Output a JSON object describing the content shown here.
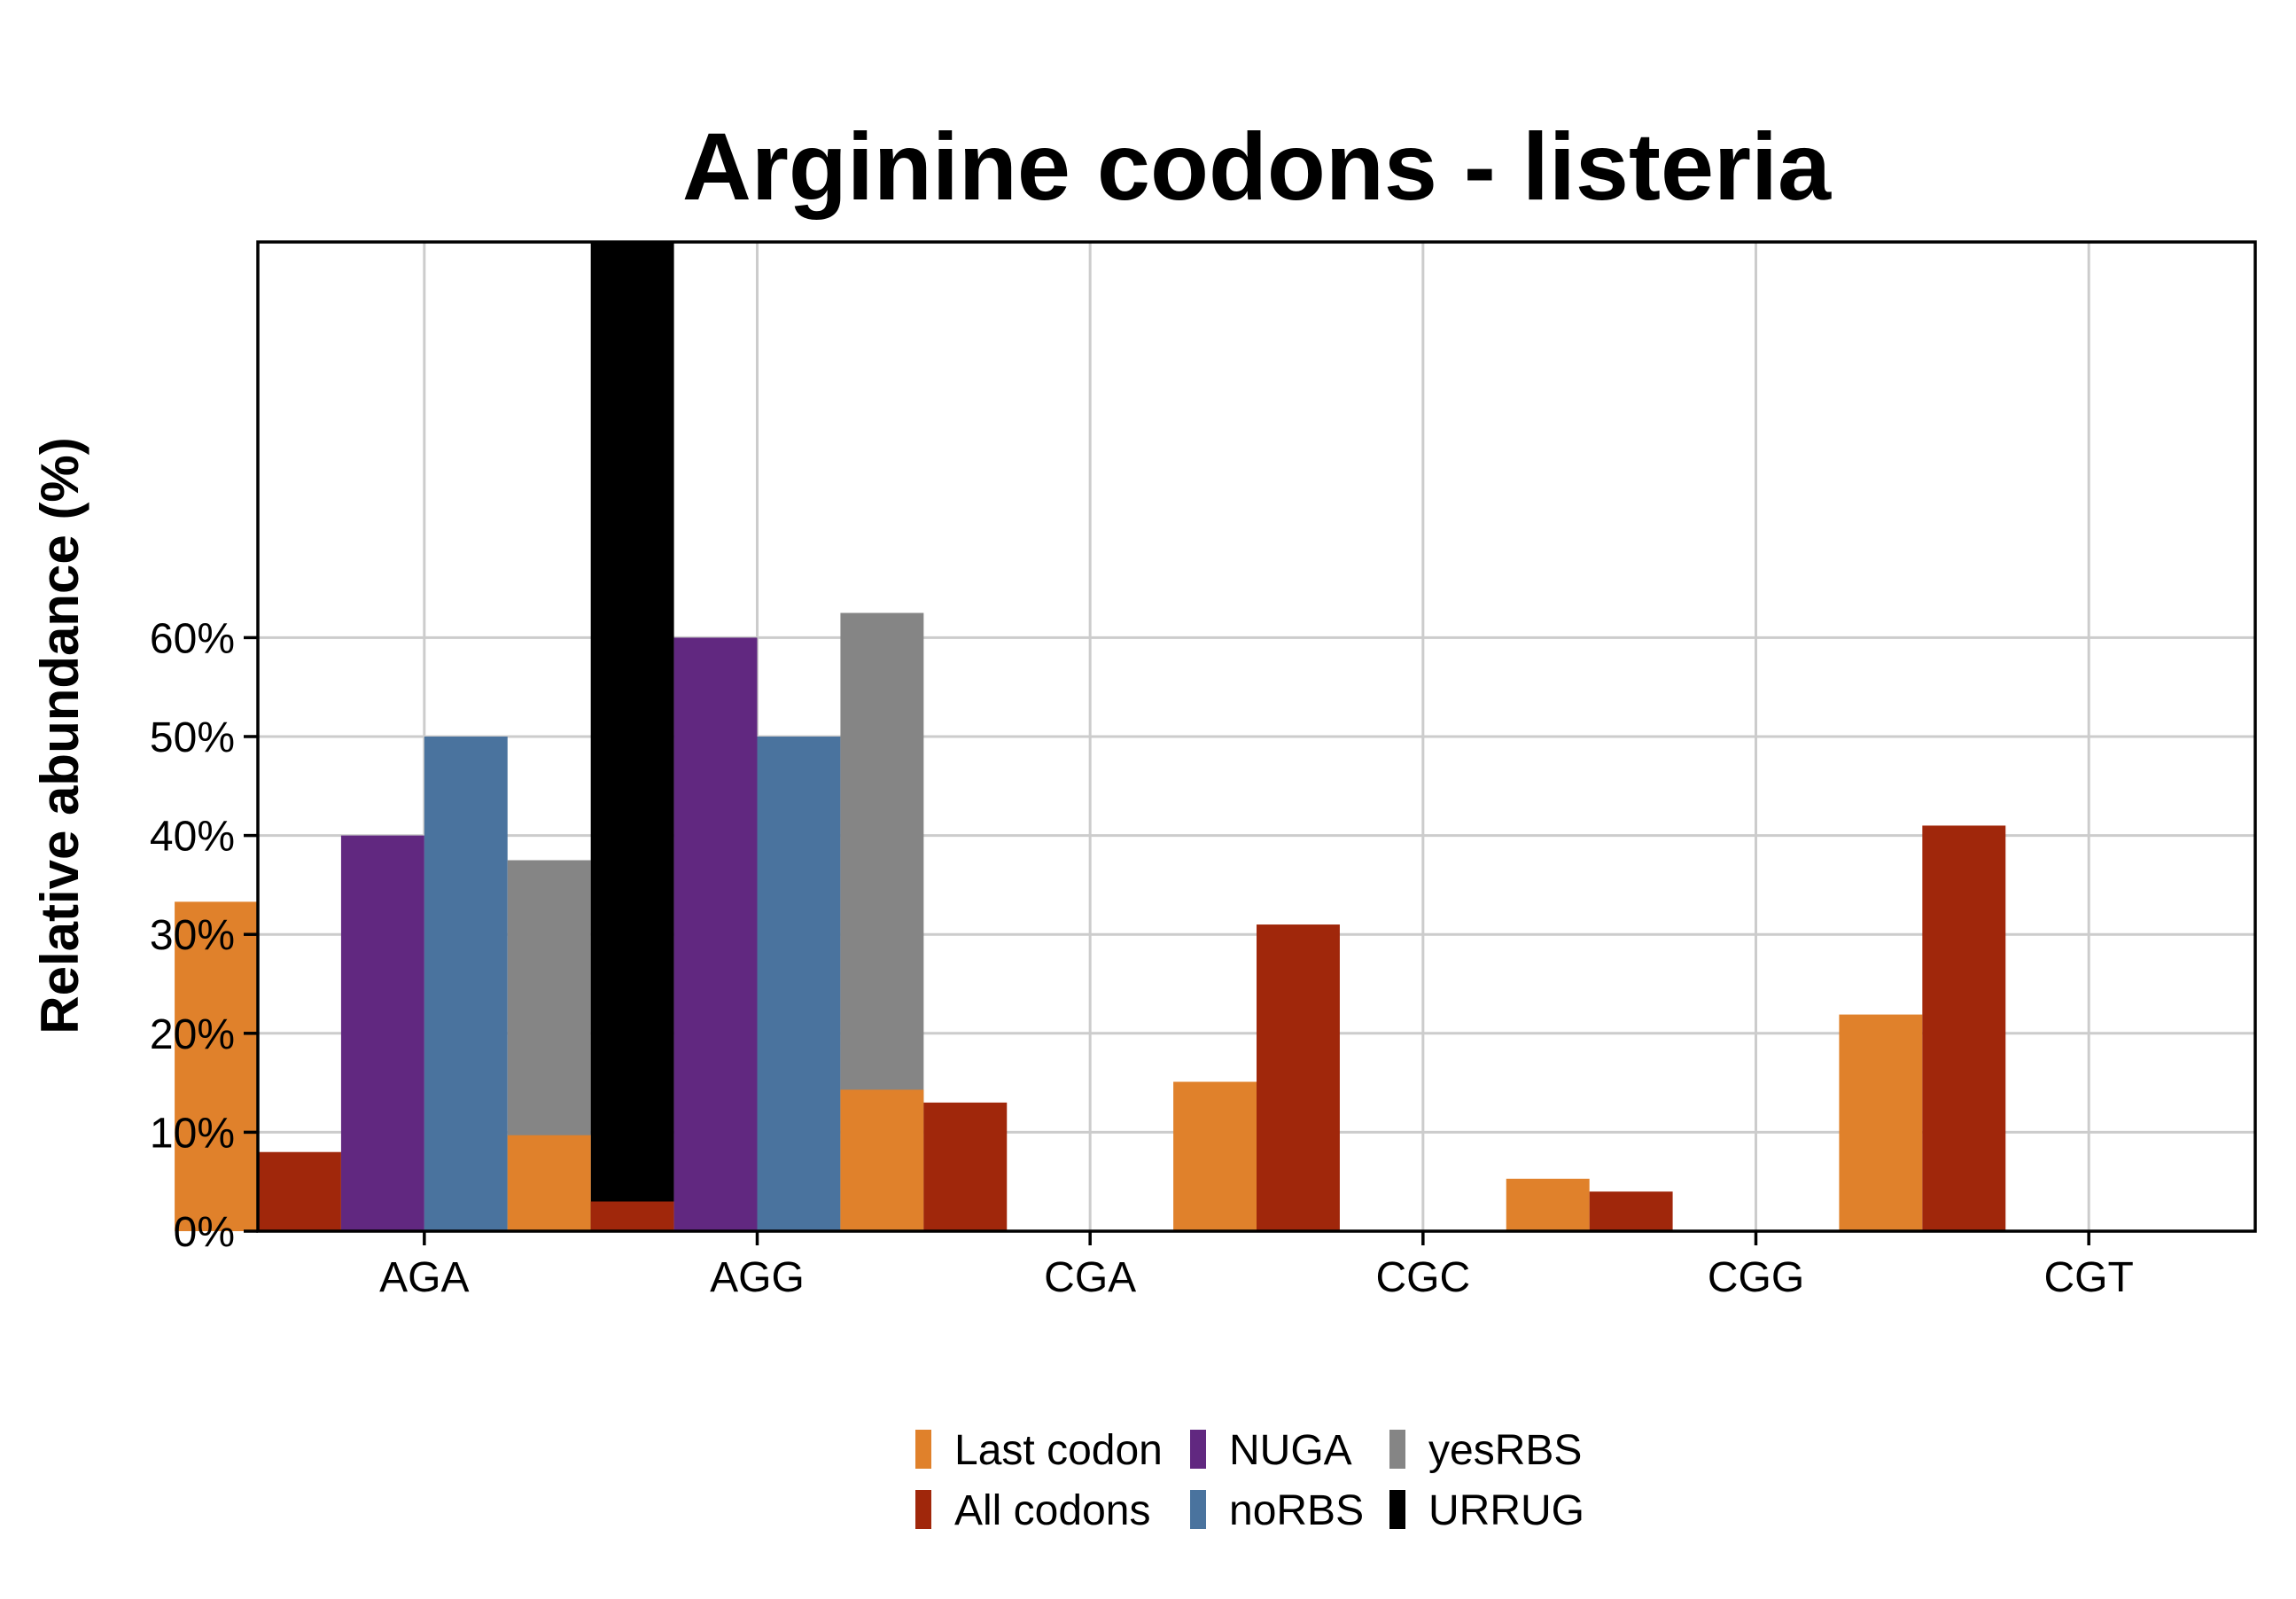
{
  "chart_data": {
    "type": "bar",
    "title": "Arginine codons - listeria",
    "xlabel": "",
    "ylabel": "Relative abundance (%)",
    "categories": [
      "AGA",
      "AGG",
      "CGA",
      "CGC",
      "CGG",
      "CGT"
    ],
    "ylim": [
      0,
      100
    ],
    "yticks": [
      0,
      10,
      20,
      30,
      40,
      50,
      60
    ],
    "ytick_labels": [
      "0%",
      "10%",
      "20%",
      "30%",
      "40%",
      "50%",
      "60%"
    ],
    "grid": true,
    "legend_position": "bottom",
    "series": [
      {
        "name": "Last codon",
        "color": "#E0812B",
        "values": [
          33.3,
          9.7,
          14.3,
          15.1,
          5.3,
          21.9
        ]
      },
      {
        "name": "All codons",
        "color": "#A0270B",
        "values": [
          8.0,
          3.0,
          13.0,
          31.0,
          4.0,
          41.0
        ]
      },
      {
        "name": "NUGA",
        "color": "#612880",
        "values": [
          40.0,
          60.0,
          0,
          0,
          0,
          0
        ]
      },
      {
        "name": "noRBS",
        "color": "#4A739E",
        "values": [
          50.0,
          50.0,
          0,
          0,
          0,
          0
        ]
      },
      {
        "name": "yesRBS",
        "color": "#858585",
        "values": [
          37.5,
          62.5,
          0,
          0,
          0,
          0
        ]
      },
      {
        "name": "URRUG",
        "color": "#000000",
        "values": [
          100.0,
          0,
          0,
          0,
          0,
          0
        ]
      }
    ]
  }
}
